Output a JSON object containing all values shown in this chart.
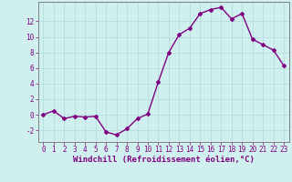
{
  "x": [
    0,
    1,
    2,
    3,
    4,
    5,
    6,
    7,
    8,
    9,
    10,
    11,
    12,
    13,
    14,
    15,
    16,
    17,
    18,
    19,
    20,
    21,
    22,
    23
  ],
  "y": [
    0.0,
    0.5,
    -0.5,
    -0.2,
    -0.3,
    -0.2,
    -2.2,
    -2.6,
    -1.8,
    -0.5,
    0.1,
    4.2,
    8.0,
    10.3,
    11.1,
    13.0,
    13.5,
    13.8,
    12.3,
    13.0,
    9.7,
    9.0,
    8.3,
    6.3
  ],
  "line_color": "#800080",
  "marker": "D",
  "marker_size": 2,
  "bg_color": "#d0f0f0",
  "grid_color": "#b0d8d8",
  "axis_color": "#800080",
  "xlabel": "Windchill (Refroidissement éolien,°C)",
  "xlim": [
    -0.5,
    23.5
  ],
  "ylim": [
    -3.5,
    14.5
  ],
  "yticks": [
    -2,
    0,
    2,
    4,
    6,
    8,
    10,
    12
  ],
  "xticks": [
    0,
    1,
    2,
    3,
    4,
    5,
    6,
    7,
    8,
    9,
    10,
    11,
    12,
    13,
    14,
    15,
    16,
    17,
    18,
    19,
    20,
    21,
    22,
    23
  ],
  "xtick_labels": [
    "0",
    "1",
    "2",
    "3",
    "4",
    "5",
    "6",
    "7",
    "8",
    "9",
    "10",
    "11",
    "12",
    "13",
    "14",
    "15",
    "16",
    "17",
    "18",
    "19",
    "20",
    "21",
    "22",
    "23"
  ],
  "linewidth": 1.0,
  "tick_fontsize": 5.5,
  "ylabel_fontsize": 5.5,
  "xlabel_fontsize": 6.5
}
